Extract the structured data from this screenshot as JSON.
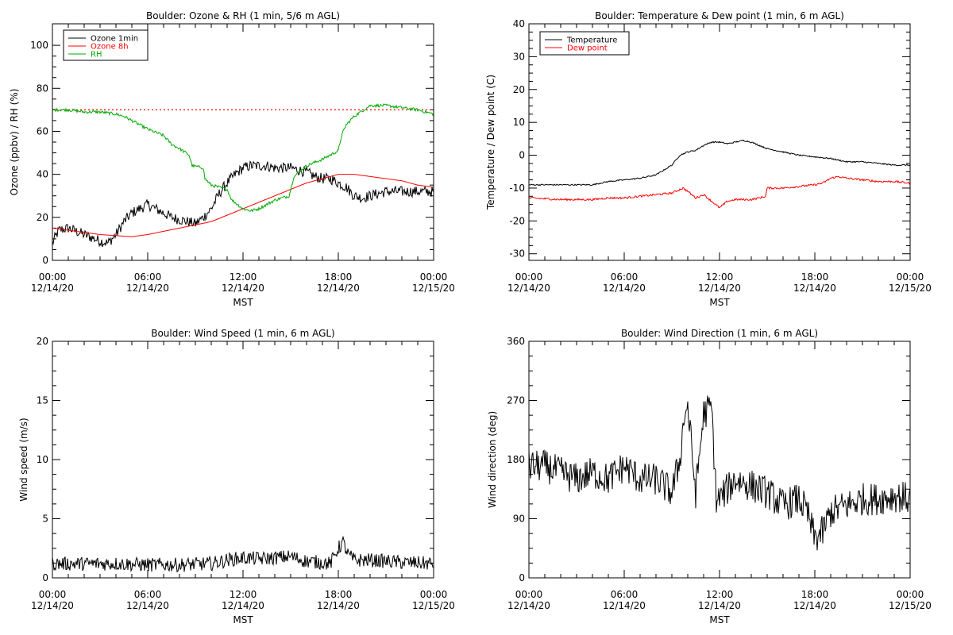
{
  "chart_data": [
    {
      "type": "line",
      "title": "Boulder: Ozone & RH (1 min, 5/6 m AGL)",
      "ylabel": "Ozone (ppbv) / RH (%)",
      "xlabel": "MST",
      "xlim": [
        0,
        24
      ],
      "ylim": [
        0,
        110
      ],
      "yticks": [
        0,
        20,
        40,
        60,
        80,
        100
      ],
      "xticks": [
        {
          "hour": 0,
          "time": "00:00",
          "date": "12/14/20"
        },
        {
          "hour": 6,
          "time": "06:00",
          "date": "12/14/20"
        },
        {
          "hour": 12,
          "time": "12:00",
          "date": "12/14/20"
        },
        {
          "hour": 18,
          "time": "18:00",
          "date": "12/14/20"
        },
        {
          "hour": 24,
          "time": "00:00",
          "date": "12/15/20"
        }
      ],
      "legend": {
        "placement": "top-left",
        "entries": [
          "Ozone 1min",
          "Ozone 8h",
          "RH"
        ]
      },
      "reference_line": {
        "y": 70,
        "color": "#ff0000",
        "style": "dotted"
      },
      "series": [
        {
          "name": "Ozone 1min",
          "color": "#000000",
          "noise": 2.5,
          "points": [
            [
              0,
              8
            ],
            [
              0.4,
              14
            ],
            [
              1,
              15
            ],
            [
              2,
              12
            ],
            [
              3,
              9
            ],
            [
              3.5,
              8
            ],
            [
              4,
              12
            ],
            [
              4.5,
              18
            ],
            [
              5,
              22
            ],
            [
              5.5,
              24
            ],
            [
              6,
              26
            ],
            [
              6.5,
              24
            ],
            [
              7,
              22
            ],
            [
              7.5,
              20
            ],
            [
              8,
              19
            ],
            [
              8.5,
              18
            ],
            [
              9,
              17
            ],
            [
              9.5,
              20
            ],
            [
              10,
              24
            ],
            [
              10.5,
              31
            ],
            [
              11,
              36
            ],
            [
              11.5,
              40
            ],
            [
              12,
              43
            ],
            [
              12.5,
              44
            ],
            [
              13,
              44
            ],
            [
              13.5,
              44
            ],
            [
              14,
              43
            ],
            [
              14.5,
              43
            ],
            [
              15,
              43
            ],
            [
              15.5,
              42
            ],
            [
              16,
              41
            ],
            [
              16.5,
              39
            ],
            [
              17,
              38
            ],
            [
              17.5,
              38
            ],
            [
              18,
              36
            ],
            [
              18.5,
              34
            ],
            [
              19,
              30
            ],
            [
              19.5,
              29
            ],
            [
              20,
              30
            ],
            [
              20.5,
              31
            ],
            [
              21,
              32
            ],
            [
              22,
              32
            ],
            [
              23,
              32
            ],
            [
              24,
              32
            ]
          ]
        },
        {
          "name": "Ozone 8h",
          "color": "#ff0000",
          "noise": 0,
          "points": [
            [
              0,
              15
            ],
            [
              1,
              14
            ],
            [
              2,
              13
            ],
            [
              3,
              12
            ],
            [
              4,
              11.5
            ],
            [
              5,
              11
            ],
            [
              6,
              12
            ],
            [
              7,
              13.5
            ],
            [
              8,
              15
            ],
            [
              9,
              16.5
            ],
            [
              10,
              18
            ],
            [
              11,
              21
            ],
            [
              12,
              24
            ],
            [
              13,
              27
            ],
            [
              14,
              30
            ],
            [
              15,
              33
            ],
            [
              16,
              36
            ],
            [
              17,
              38
            ],
            [
              18,
              40
            ],
            [
              19,
              40
            ],
            [
              20,
              39
            ],
            [
              21,
              38
            ],
            [
              22,
              37
            ],
            [
              23,
              35
            ],
            [
              24,
              34
            ]
          ]
        },
        {
          "name": "RH",
          "color": "#00aa00",
          "noise": 0.7,
          "points": [
            [
              0,
              70
            ],
            [
              1,
              70
            ],
            [
              2,
              69
            ],
            [
              3,
              69
            ],
            [
              4,
              68
            ],
            [
              4.5,
              67
            ],
            [
              5,
              65
            ],
            [
              6,
              61
            ],
            [
              7,
              58
            ],
            [
              7.5,
              54
            ],
            [
              8,
              52
            ],
            [
              8.6,
              49
            ],
            [
              8.8,
              44
            ],
            [
              9.5,
              43
            ],
            [
              9.6,
              38
            ],
            [
              10,
              35
            ],
            [
              10.5,
              34
            ],
            [
              11,
              33
            ],
            [
              11.3,
              28
            ],
            [
              12,
              24
            ],
            [
              12.5,
              23
            ],
            [
              13,
              24
            ],
            [
              14,
              28
            ],
            [
              14.9,
              30
            ],
            [
              15.2,
              39
            ],
            [
              16,
              44
            ],
            [
              17,
              47
            ],
            [
              18,
              51
            ],
            [
              18.2,
              58
            ],
            [
              18.5,
              63
            ],
            [
              19,
              67
            ],
            [
              20,
              72
            ],
            [
              21,
              72
            ],
            [
              22,
              71
            ],
            [
              23,
              70
            ],
            [
              24,
              68
            ]
          ]
        }
      ]
    },
    {
      "type": "line",
      "title": "Boulder: Temperature & Dew point (1 min, 6 m AGL)",
      "ylabel": "Temperature / Dew point (C)",
      "xlabel": "MST",
      "xlim": [
        0,
        24
      ],
      "ylim": [
        -32,
        40
      ],
      "yticks": [
        -30,
        -20,
        -10,
        0,
        10,
        20,
        30,
        40
      ],
      "xticks": [
        {
          "hour": 0,
          "time": "00:00",
          "date": "12/14/20"
        },
        {
          "hour": 6,
          "time": "06:00",
          "date": "12/14/20"
        },
        {
          "hour": 12,
          "time": "12:00",
          "date": "12/14/20"
        },
        {
          "hour": 18,
          "time": "18:00",
          "date": "12/14/20"
        },
        {
          "hour": 24,
          "time": "00:00",
          "date": "12/15/20"
        }
      ],
      "legend": {
        "placement": "top-left",
        "entries": [
          "Temperature",
          "Dew point"
        ]
      },
      "series": [
        {
          "name": "Temperature",
          "color": "#000000",
          "noise": 0.2,
          "points": [
            [
              0,
              -9
            ],
            [
              2,
              -9
            ],
            [
              4,
              -9
            ],
            [
              5,
              -8
            ],
            [
              6,
              -7.5
            ],
            [
              7,
              -7
            ],
            [
              8,
              -6
            ],
            [
              9,
              -3
            ],
            [
              9.5,
              0
            ],
            [
              10,
              1
            ],
            [
              10.5,
              1.5
            ],
            [
              11,
              3
            ],
            [
              11.5,
              4
            ],
            [
              12,
              4
            ],
            [
              12.5,
              3.5
            ],
            [
              13,
              4
            ],
            [
              13.5,
              4.5
            ],
            [
              14,
              4
            ],
            [
              15,
              2
            ],
            [
              16,
              1
            ],
            [
              17,
              0
            ],
            [
              18,
              -0.5
            ],
            [
              19,
              -1
            ],
            [
              20,
              -2
            ],
            [
              21,
              -2
            ],
            [
              22,
              -2.5
            ],
            [
              23,
              -3
            ],
            [
              24,
              -3
            ]
          ]
        },
        {
          "name": "Dew point",
          "color": "#ff0000",
          "noise": 0.3,
          "points": [
            [
              0,
              -13
            ],
            [
              2,
              -13.5
            ],
            [
              4,
              -13.5
            ],
            [
              5,
              -13
            ],
            [
              6,
              -13
            ],
            [
              7,
              -12.5
            ],
            [
              8,
              -12
            ],
            [
              9,
              -11.5
            ],
            [
              9.7,
              -10
            ],
            [
              10,
              -11
            ],
            [
              10.5,
              -13
            ],
            [
              11,
              -12
            ],
            [
              11.5,
              -14
            ],
            [
              12,
              -16
            ],
            [
              12.5,
              -14
            ],
            [
              13,
              -13.5
            ],
            [
              14,
              -13.5
            ],
            [
              14.5,
              -13
            ],
            [
              14.9,
              -12.5
            ],
            [
              15,
              -10
            ],
            [
              16,
              -10
            ],
            [
              17,
              -9.5
            ],
            [
              18,
              -9
            ],
            [
              18.5,
              -8.5
            ],
            [
              19,
              -7
            ],
            [
              19.5,
              -6.5
            ],
            [
              20,
              -7
            ],
            [
              21,
              -7.5
            ],
            [
              22,
              -8
            ],
            [
              23,
              -8
            ],
            [
              24,
              -8.5
            ]
          ]
        }
      ]
    },
    {
      "type": "line",
      "title": "Boulder: Wind Speed (1 min, 6 m AGL)",
      "ylabel": "Wind speed (m/s)",
      "xlabel": "MST",
      "xlim": [
        0,
        24
      ],
      "ylim": [
        0,
        20
      ],
      "yticks": [
        0,
        5,
        10,
        15,
        20
      ],
      "xticks": [
        {
          "hour": 0,
          "time": "00:00",
          "date": "12/14/20"
        },
        {
          "hour": 6,
          "time": "06:00",
          "date": "12/14/20"
        },
        {
          "hour": 12,
          "time": "12:00",
          "date": "12/14/20"
        },
        {
          "hour": 18,
          "time": "18:00",
          "date": "12/14/20"
        },
        {
          "hour": 24,
          "time": "00:00",
          "date": "12/15/20"
        }
      ],
      "series": [
        {
          "name": "",
          "color": "#000000",
          "noise": 0.6,
          "points": [
            [
              0,
              1.2
            ],
            [
              2,
              1.2
            ],
            [
              4,
              1.2
            ],
            [
              6,
              1.1
            ],
            [
              8,
              1.1
            ],
            [
              10,
              1.2
            ],
            [
              11,
              1.5
            ],
            [
              12,
              1.7
            ],
            [
              13,
              1.6
            ],
            [
              14,
              1.7
            ],
            [
              15,
              1.8
            ],
            [
              16,
              1.4
            ],
            [
              17,
              1.3
            ],
            [
              17.5,
              1.2
            ],
            [
              18,
              2.5
            ],
            [
              18.3,
              3
            ],
            [
              18.6,
              2
            ],
            [
              19,
              1.5
            ],
            [
              20,
              1.5
            ],
            [
              22,
              1.3
            ],
            [
              24,
              1.2
            ]
          ]
        }
      ]
    },
    {
      "type": "line",
      "title": "Boulder: Wind Direction (1 min, 6 m AGL)",
      "ylabel": "Wind direction (deg)",
      "xlabel": "MST",
      "xlim": [
        0,
        24
      ],
      "ylim": [
        0,
        360
      ],
      "yticks": [
        0,
        90,
        180,
        270,
        360
      ],
      "xticks": [
        {
          "hour": 0,
          "time": "00:00",
          "date": "12/14/20"
        },
        {
          "hour": 6,
          "time": "06:00",
          "date": "12/14/20"
        },
        {
          "hour": 12,
          "time": "12:00",
          "date": "12/14/20"
        },
        {
          "hour": 18,
          "time": "18:00",
          "date": "12/14/20"
        },
        {
          "hour": 24,
          "time": "00:00",
          "date": "12/15/20"
        }
      ],
      "series": [
        {
          "name": "",
          "color": "#000000",
          "noise": 25,
          "points": [
            [
              0,
              170
            ],
            [
              1,
              170
            ],
            [
              2,
              160
            ],
            [
              3,
              150
            ],
            [
              4,
              160
            ],
            [
              5,
              150
            ],
            [
              6,
              170
            ],
            [
              7,
              150
            ],
            [
              8,
              150
            ],
            [
              9,
              130
            ],
            [
              9.5,
              180
            ],
            [
              9.8,
              250
            ],
            [
              10,
              260
            ],
            [
              10.5,
              130
            ],
            [
              11,
              250
            ],
            [
              11.5,
              260
            ],
            [
              11.8,
              120
            ],
            [
              12,
              120
            ],
            [
              13,
              150
            ],
            [
              14,
              140
            ],
            [
              15,
              130
            ],
            [
              16,
              110
            ],
            [
              17,
              120
            ],
            [
              17.5,
              100
            ],
            [
              18,
              60
            ],
            [
              18.5,
              70
            ],
            [
              19,
              100
            ],
            [
              20,
              110
            ],
            [
              21,
              120
            ],
            [
              22,
              120
            ],
            [
              23,
              125
            ],
            [
              24,
              120
            ]
          ]
        }
      ]
    }
  ]
}
